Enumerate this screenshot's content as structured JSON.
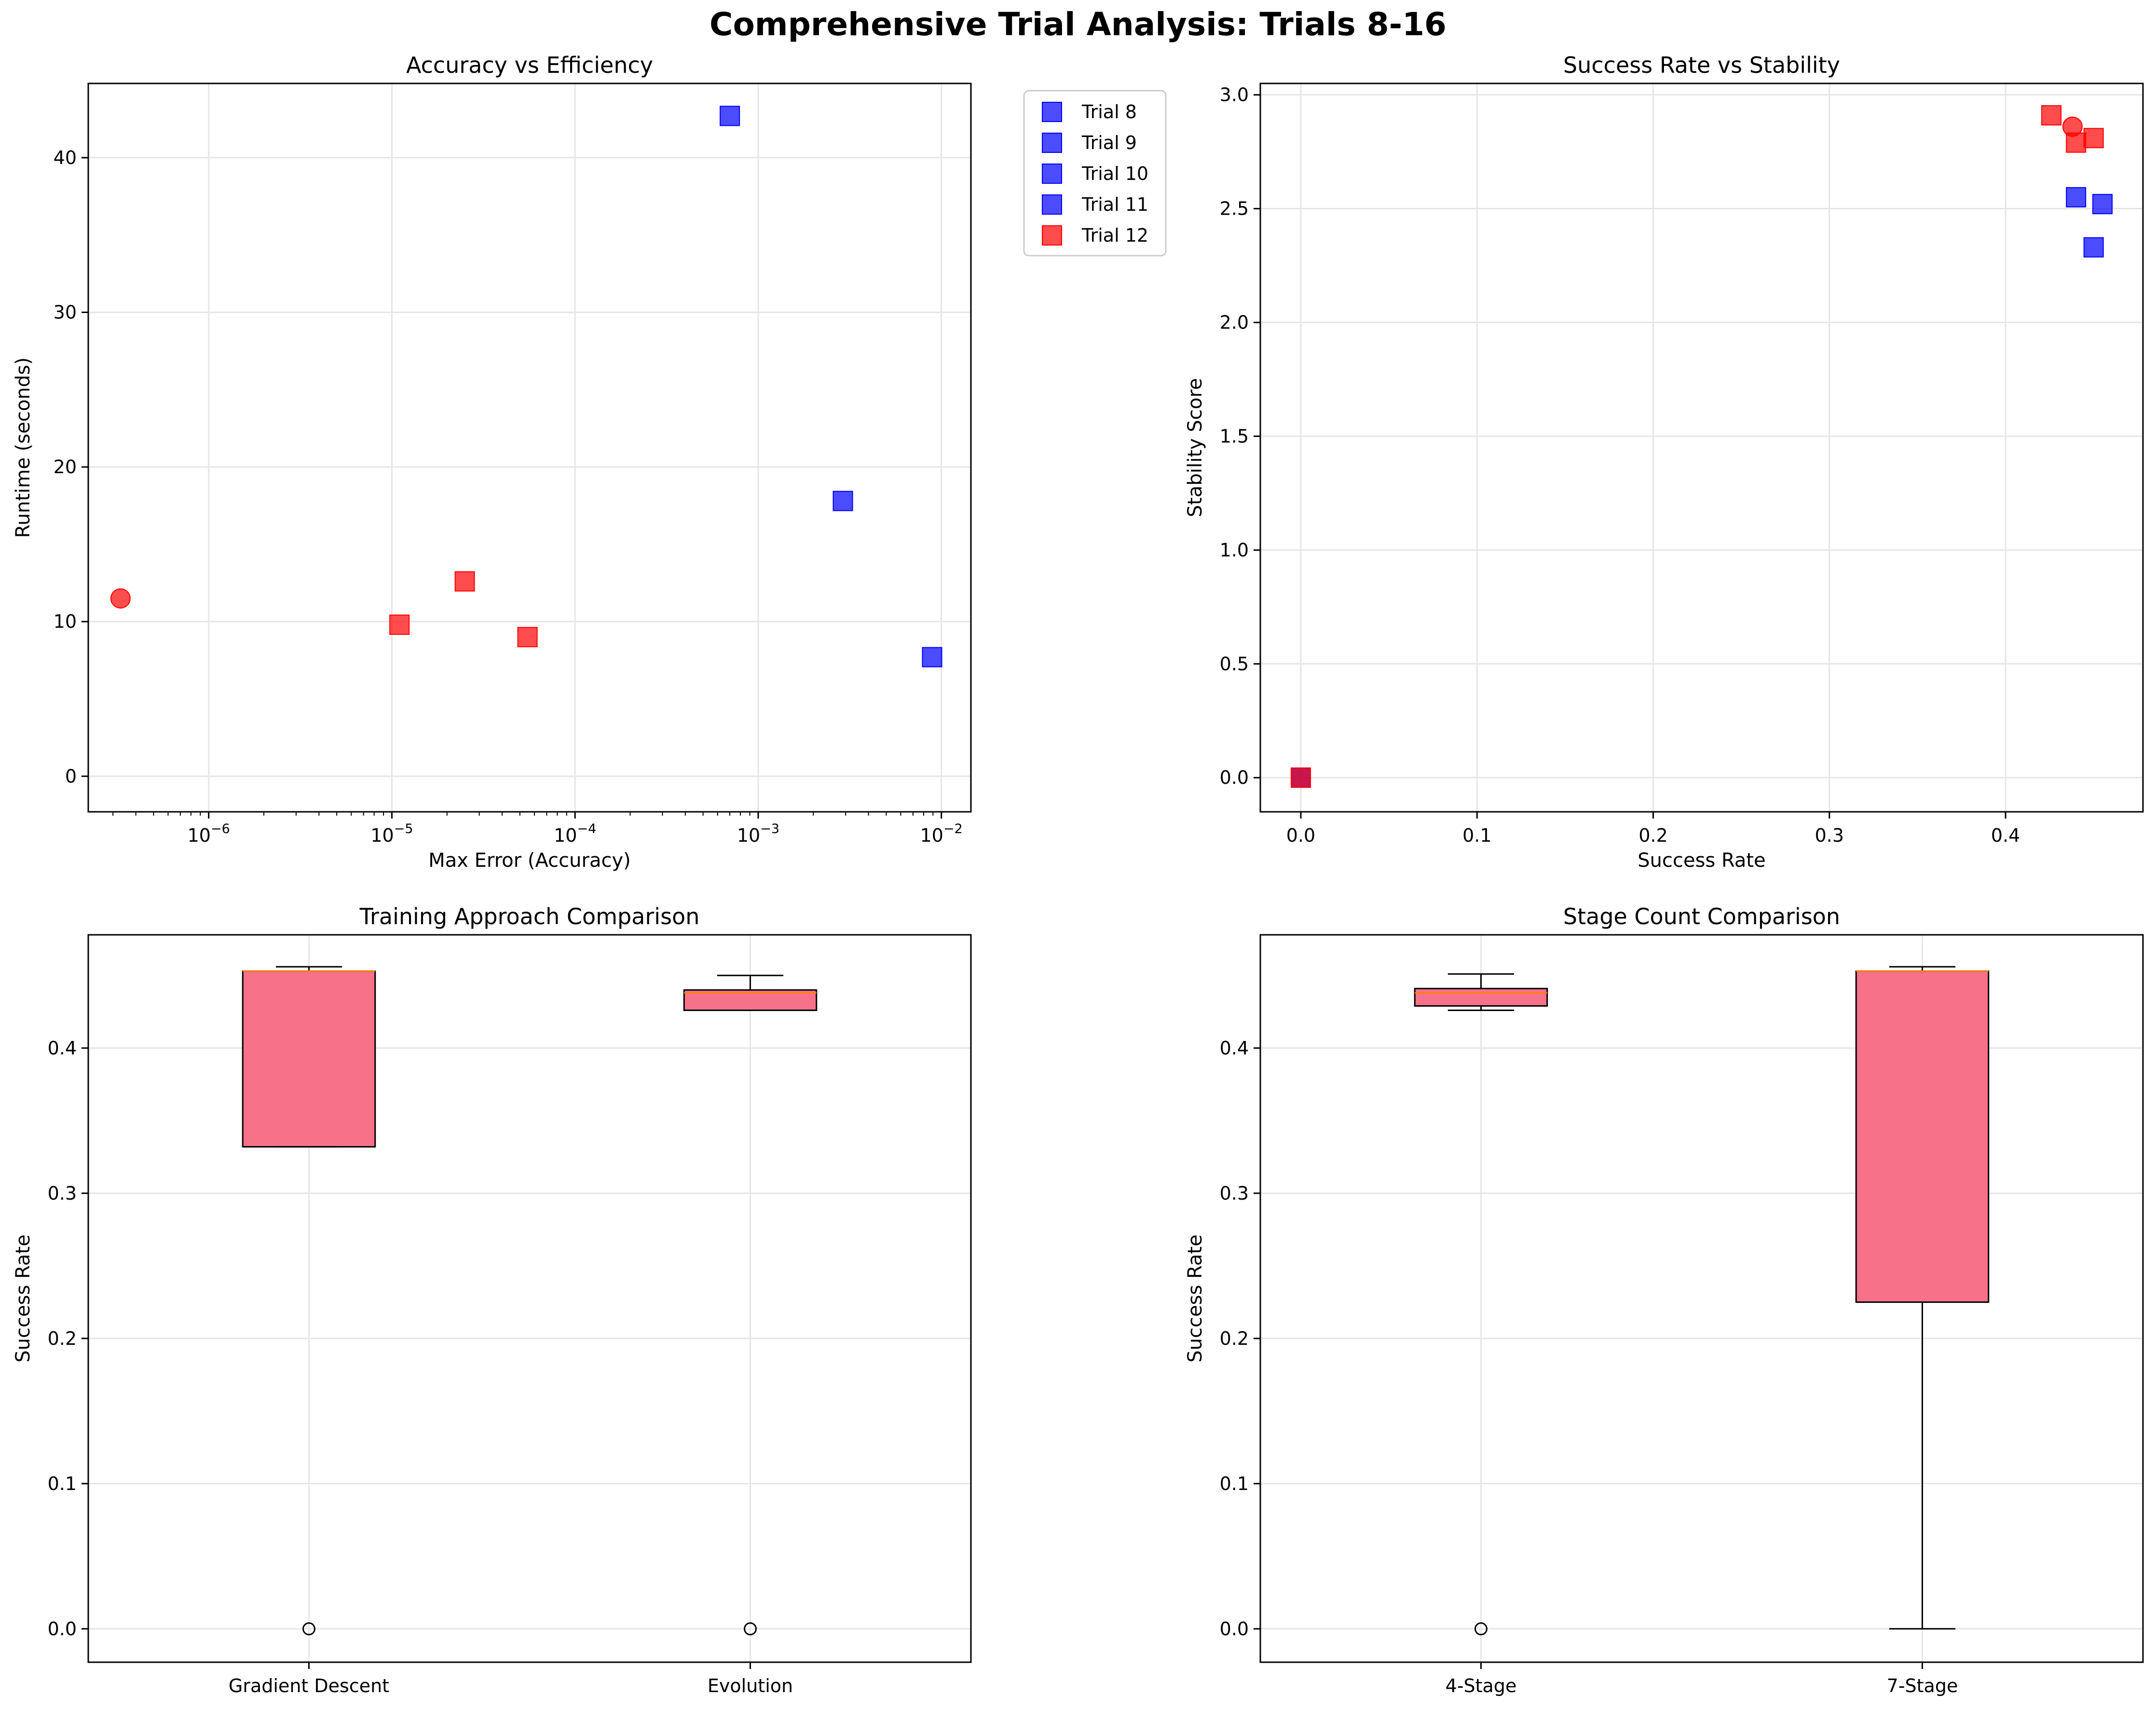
{
  "figure": {
    "title": "Comprehensive Trial Analysis: Trials 8-16"
  },
  "colors": {
    "blue": "#0000ff",
    "red": "#ff0000",
    "box_fill": "#f77189",
    "grid": "#e6e6e6"
  },
  "chart_data": [
    {
      "type": "scatter",
      "title": "Accuracy vs Efficiency",
      "xlabel": "Max Error (Accuracy)",
      "ylabel": "Runtime (seconds)",
      "xscale": "log",
      "xlim": [
        2.2e-07,
        0.0145
      ],
      "ylim": [
        -2.3,
        44.8
      ],
      "xticks": [
        1e-06,
        1e-05,
        0.0001,
        0.001,
        0.01
      ],
      "xtick_labels": [
        {
          "base": "10",
          "exp": "−6"
        },
        {
          "base": "10",
          "exp": "−5"
        },
        {
          "base": "10",
          "exp": "−4"
        },
        {
          "base": "10",
          "exp": "−3"
        },
        {
          "base": "10",
          "exp": "−2"
        }
      ],
      "yticks": [
        0,
        10,
        20,
        30,
        40
      ],
      "grid": true,
      "legend": {
        "placement": "outside-upper-right",
        "entries": [
          {
            "label": "Trial 8",
            "color": "blue"
          },
          {
            "label": "Trial 9",
            "color": "blue"
          },
          {
            "label": "Trial 10",
            "color": "blue"
          },
          {
            "label": "Trial 11",
            "color": "blue"
          },
          {
            "label": "Trial 12",
            "color": "red"
          }
        ]
      },
      "points": [
        {
          "x": 0.0007,
          "y": 42.7,
          "color": "blue",
          "marker": "square"
        },
        {
          "x": 0.0029,
          "y": 17.8,
          "color": "blue",
          "marker": "square"
        },
        {
          "x": 0.0089,
          "y": 7.7,
          "color": "blue",
          "marker": "square"
        },
        {
          "x": 3.3e-07,
          "y": 11.5,
          "color": "red",
          "marker": "circle"
        },
        {
          "x": 1.1e-05,
          "y": 9.8,
          "color": "red",
          "marker": "square"
        },
        {
          "x": 2.5e-05,
          "y": 12.6,
          "color": "red",
          "marker": "square"
        },
        {
          "x": 5.5e-05,
          "y": 9.0,
          "color": "red",
          "marker": "square"
        }
      ]
    },
    {
      "type": "scatter",
      "title": "Success Rate vs Stability",
      "xlabel": "Success Rate",
      "ylabel": "Stability Score",
      "xlim": [
        -0.023,
        0.478
      ],
      "ylim": [
        -0.15,
        3.05
      ],
      "xticks": [
        0.0,
        0.1,
        0.2,
        0.3,
        0.4
      ],
      "xtick_labels": [
        "0.0",
        "0.1",
        "0.2",
        "0.3",
        "0.4"
      ],
      "yticks": [
        0.0,
        0.5,
        1.0,
        1.5,
        2.0,
        2.5,
        3.0
      ],
      "ytick_labels": [
        "0.0",
        "0.5",
        "1.0",
        "1.5",
        "2.0",
        "2.5",
        "3.0"
      ],
      "grid": true,
      "points": [
        {
          "x": 0.0,
          "y": 0.0,
          "color": "blue",
          "marker": "square"
        },
        {
          "x": 0.0,
          "y": 0.0,
          "color": "red",
          "marker": "square"
        },
        {
          "x": 0.426,
          "y": 2.91,
          "color": "red",
          "marker": "square"
        },
        {
          "x": 0.438,
          "y": 2.86,
          "color": "red",
          "marker": "circle"
        },
        {
          "x": 0.44,
          "y": 2.79,
          "color": "red",
          "marker": "square"
        },
        {
          "x": 0.45,
          "y": 2.81,
          "color": "red",
          "marker": "square"
        },
        {
          "x": 0.44,
          "y": 2.55,
          "color": "blue",
          "marker": "square"
        },
        {
          "x": 0.455,
          "y": 2.52,
          "color": "blue",
          "marker": "square"
        },
        {
          "x": 0.45,
          "y": 2.33,
          "color": "blue",
          "marker": "square"
        }
      ]
    },
    {
      "type": "box",
      "title": "Training Approach Comparison",
      "xlabel": "",
      "ylabel": "Success Rate",
      "ylim": [
        -0.023,
        0.478
      ],
      "yticks": [
        0.0,
        0.1,
        0.2,
        0.3,
        0.4
      ],
      "ytick_labels": [
        "0.0",
        "0.1",
        "0.2",
        "0.3",
        "0.4"
      ],
      "grid": true,
      "categories": [
        "Gradient Descent",
        "Evolution"
      ],
      "boxes": [
        {
          "whislo": 0.332,
          "q1": 0.332,
          "med": 0.453,
          "q3": 0.453,
          "whishi": 0.456,
          "fliers": [
            0.0
          ]
        },
        {
          "whislo": 0.426,
          "q1": 0.426,
          "med": 0.438,
          "q3": 0.44,
          "whishi": 0.45,
          "fliers": [
            0.0
          ]
        }
      ]
    },
    {
      "type": "box",
      "title": "Stage Count Comparison",
      "xlabel": "",
      "ylabel": "Success Rate",
      "ylim": [
        -0.023,
        0.478
      ],
      "yticks": [
        0.0,
        0.1,
        0.2,
        0.3,
        0.4
      ],
      "ytick_labels": [
        "0.0",
        "0.1",
        "0.2",
        "0.3",
        "0.4"
      ],
      "grid": true,
      "categories": [
        "4-Stage",
        "7-Stage"
      ],
      "boxes": [
        {
          "whislo": 0.426,
          "q1": 0.429,
          "med": 0.438,
          "q3": 0.441,
          "whishi": 0.451,
          "fliers": [
            0.0
          ]
        },
        {
          "whislo": 0.0,
          "q1": 0.225,
          "med": 0.453,
          "q3": 0.453,
          "whishi": 0.456,
          "fliers": []
        }
      ]
    }
  ]
}
